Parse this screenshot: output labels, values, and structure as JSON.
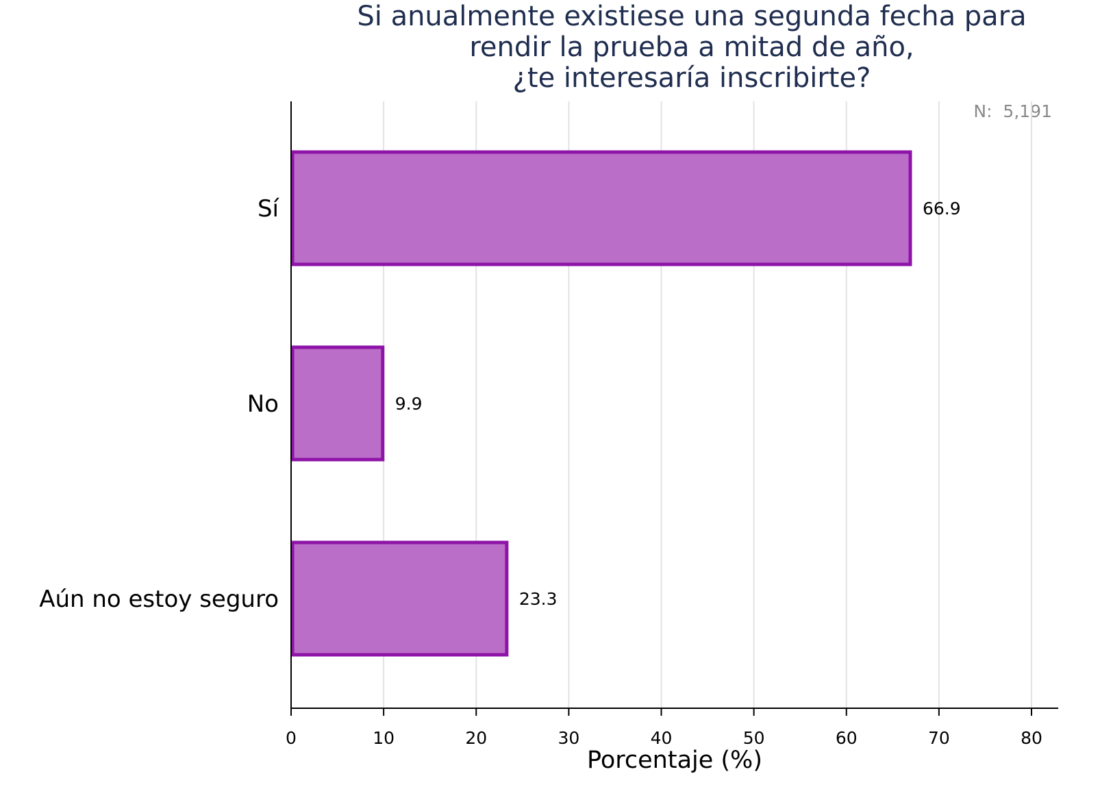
{
  "chart": {
    "title_lines": [
      "Si anualmente existiese una segunda fecha para",
      "rendir la prueba a mitad de año,",
      "¿te interesaría inscribirte?"
    ],
    "sample_label": "N:",
    "sample_value": "5,191"
  },
  "chart_data": {
    "type": "bar",
    "orientation": "horizontal",
    "title": "Si anualmente existiese una segunda fecha para rendir la prueba a mitad de año, ¿te interesaría inscribirte?",
    "categories": [
      "Sí",
      "No",
      "Aún no estoy seguro"
    ],
    "values": [
      66.9,
      9.9,
      23.3
    ],
    "data_labels": [
      "66.9",
      "9.9",
      "23.3"
    ],
    "xlabel": "Porcentaje (%)",
    "ylabel": "",
    "xlim": [
      0,
      80
    ],
    "x_ticks": [
      0,
      10,
      20,
      30,
      40,
      50,
      60,
      70,
      80
    ],
    "grid": "vertical",
    "annotation": "N: 5,191",
    "colors": {
      "bar_fill": "#bb6ec7",
      "bar_stroke": "#8e14a8",
      "grid": "#e3e3e3",
      "axis": "#000000",
      "title": "#1f2d4f",
      "annotation": "#8a8a8a"
    }
  }
}
